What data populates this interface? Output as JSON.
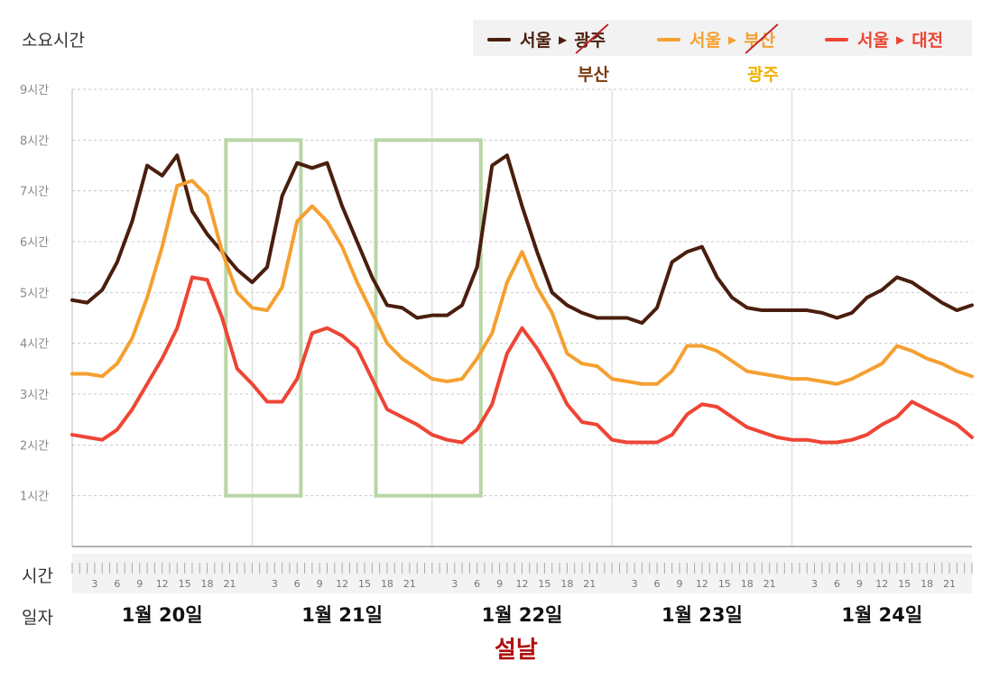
{
  "header": {
    "title": "소요시간"
  },
  "legend": [
    {
      "from": "서울",
      "arrow": "▶",
      "to": "광주",
      "color": "#4a1e0e",
      "correction": "부산",
      "correction_color": "#7a3a10",
      "struck": true
    },
    {
      "from": "서울",
      "arrow": "▶",
      "to": "부산",
      "color": "#f5a030",
      "correction": "광주",
      "correction_color": "#f0b000",
      "struck": true
    },
    {
      "from": "서울",
      "arrow": "▶",
      "to": "대전",
      "color": "#ee4535",
      "struck": false
    }
  ],
  "axes": {
    "row_time_label": "시간",
    "row_date_label": "일자",
    "holiday_label": "설날"
  },
  "chart_data": {
    "type": "line",
    "title": "",
    "ylabel": "소요시간",
    "yunit": "시간",
    "ylim": [
      0,
      9
    ],
    "yticks": [
      "1시간",
      "2시간",
      "3시간",
      "4시간",
      "5시간",
      "6시간",
      "7시간",
      "8시간",
      "9시간"
    ],
    "xlim": [
      0,
      120
    ],
    "x_unit": "hours from 1월 20일 00:00",
    "x_hour_ticks": [
      "3",
      "6",
      "9",
      "12",
      "15",
      "18",
      "21"
    ],
    "days": [
      "1월 20일",
      "1월 21일",
      "1월 22일",
      "1월 23일",
      "1월 24일"
    ],
    "grid": true,
    "highlight_ranges": [
      [
        20.5,
        30.5
      ],
      [
        40.5,
        54.5
      ]
    ],
    "highlight_color": "#b9d6a6",
    "x": [
      0,
      2,
      4,
      6,
      8,
      10,
      12,
      14,
      16,
      18,
      20,
      22,
      24,
      26,
      28,
      30,
      32,
      34,
      36,
      38,
      40,
      42,
      44,
      46,
      48,
      50,
      52,
      54,
      56,
      58,
      60,
      62,
      64,
      66,
      68,
      70,
      72,
      74,
      76,
      78,
      80,
      82,
      84,
      86,
      88,
      90,
      92,
      94,
      96,
      98,
      100,
      102,
      104,
      106,
      108,
      110,
      112,
      114,
      116,
      118,
      120
    ],
    "series": [
      {
        "name": "서울▶광주",
        "color": "#4a1e0e",
        "values": [
          4.85,
          4.8,
          5.05,
          5.6,
          6.4,
          7.5,
          7.3,
          7.7,
          6.6,
          6.15,
          5.8,
          5.45,
          5.2,
          5.5,
          6.9,
          7.55,
          7.45,
          7.55,
          6.7,
          6.0,
          5.3,
          4.75,
          4.7,
          4.5,
          4.55,
          4.55,
          4.75,
          5.5,
          7.5,
          7.7,
          6.7,
          5.8,
          5.0,
          4.75,
          4.6,
          4.5,
          4.5,
          4.5,
          4.4,
          4.7,
          5.6,
          5.8,
          5.9,
          5.3,
          4.9,
          4.7,
          4.65,
          4.65,
          4.65,
          4.65,
          4.6,
          4.5,
          4.6,
          4.9,
          5.05,
          5.3,
          5.2,
          5.0,
          4.8,
          4.65,
          4.75
        ]
      },
      {
        "name": "서울▶부산",
        "color": "#f5a030",
        "values": [
          3.4,
          3.4,
          3.35,
          3.6,
          4.1,
          4.9,
          5.9,
          7.1,
          7.2,
          6.9,
          5.8,
          5.0,
          4.7,
          4.65,
          5.1,
          6.4,
          6.7,
          6.4,
          5.9,
          5.2,
          4.6,
          4.0,
          3.7,
          3.5,
          3.3,
          3.25,
          3.3,
          3.7,
          4.2,
          5.2,
          5.8,
          5.1,
          4.6,
          3.8,
          3.6,
          3.55,
          3.3,
          3.25,
          3.2,
          3.2,
          3.45,
          3.95,
          3.95,
          3.85,
          3.65,
          3.45,
          3.4,
          3.35,
          3.3,
          3.3,
          3.25,
          3.2,
          3.3,
          3.45,
          3.6,
          3.95,
          3.85,
          3.7,
          3.6,
          3.45,
          3.35
        ]
      },
      {
        "name": "서울▶대전",
        "color": "#ee4535",
        "values": [
          2.2,
          2.15,
          2.1,
          2.3,
          2.7,
          3.2,
          3.7,
          4.3,
          5.3,
          5.25,
          4.5,
          3.5,
          3.2,
          2.85,
          2.85,
          3.3,
          4.2,
          4.3,
          4.15,
          3.9,
          3.3,
          2.7,
          2.55,
          2.4,
          2.2,
          2.1,
          2.05,
          2.3,
          2.8,
          3.8,
          4.3,
          3.9,
          3.4,
          2.8,
          2.45,
          2.4,
          2.1,
          2.05,
          2.05,
          2.05,
          2.2,
          2.6,
          2.8,
          2.75,
          2.55,
          2.35,
          2.25,
          2.15,
          2.1,
          2.1,
          2.05,
          2.05,
          2.1,
          2.2,
          2.4,
          2.55,
          2.85,
          2.7,
          2.55,
          2.4,
          2.15
        ]
      }
    ]
  }
}
